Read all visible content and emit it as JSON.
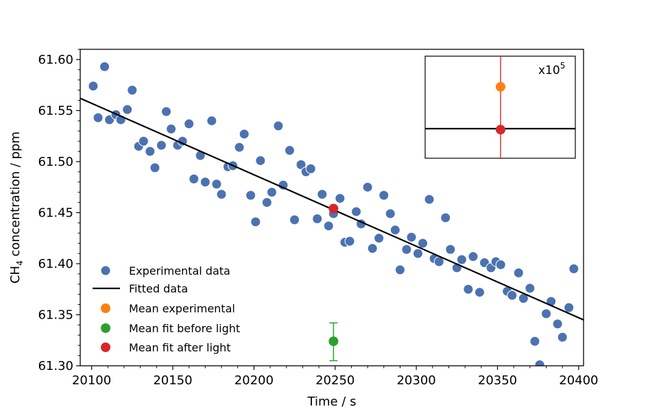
{
  "chart_data": {
    "type": "scatter",
    "title": "",
    "xlabel": "Time / s",
    "ylabel_parts": {
      "pre": "CH",
      "sub": "4",
      "post": " concentration / ppm"
    },
    "xlim": [
      20093,
      20403
    ],
    "ylim": [
      61.3,
      61.61
    ],
    "xticks": [
      20100,
      20150,
      20200,
      20250,
      20300,
      20350,
      20400
    ],
    "yticks": [
      61.3,
      61.35,
      61.4,
      61.45,
      61.5,
      61.55,
      61.6
    ],
    "xtick_labels": [
      "20100",
      "20150",
      "20200",
      "20250",
      "20300",
      "20350",
      "20400"
    ],
    "ytick_labels": [
      "61.30",
      "61.35",
      "61.40",
      "61.45",
      "61.50",
      "61.55",
      "61.60"
    ],
    "grid": false,
    "legend_position": "lower-left",
    "colors": {
      "experimental": "#4c72b0",
      "fit": "#000000",
      "mean_experimental": "#ff7f0e",
      "mean_fit_before": "#2ca02c",
      "mean_fit_after": "#d62728"
    },
    "legend": [
      {
        "label": "Experimental data",
        "kind": "marker",
        "color": "#4c72b0"
      },
      {
        "label": "Fitted data",
        "kind": "line",
        "color": "#000000"
      },
      {
        "label": "Mean experimental",
        "kind": "marker",
        "color": "#ff7f0e"
      },
      {
        "label": "Mean fit before light",
        "kind": "marker",
        "color": "#2ca02c"
      },
      {
        "label": "Mean fit after light",
        "kind": "marker",
        "color": "#d62728"
      }
    ],
    "experimental": {
      "x": [
        20101,
        20104,
        20108,
        20111,
        20115,
        20118,
        20122,
        20125,
        20129,
        20132,
        20136,
        20139,
        20143,
        20146,
        20149,
        20153,
        20156,
        20160,
        20163,
        20167,
        20170,
        20174,
        20177,
        20180,
        20184,
        20187,
        20191,
        20194,
        20198,
        20201,
        20204,
        20208,
        20211,
        20215,
        20218,
        20222,
        20225,
        20229,
        20232,
        20235,
        20239,
        20242,
        20246,
        20249,
        20253,
        20256,
        20259,
        20263,
        20266,
        20270,
        20273,
        20277,
        20280,
        20284,
        20287,
        20290,
        20294,
        20297,
        20301,
        20304,
        20308,
        20311,
        20314,
        20318,
        20321,
        20325,
        20328,
        20332,
        20335,
        20339,
        20342,
        20346,
        20349,
        20352,
        20356,
        20359,
        20363,
        20366,
        20370,
        20373,
        20376,
        20380,
        20383,
        20387,
        20390,
        20394,
        20397
      ],
      "y": [
        61.574,
        61.543,
        61.593,
        61.541,
        61.546,
        61.541,
        61.551,
        61.57,
        61.515,
        61.52,
        61.51,
        61.494,
        61.516,
        61.549,
        61.532,
        61.516,
        61.52,
        61.537,
        61.483,
        61.506,
        61.48,
        61.54,
        61.478,
        61.468,
        61.495,
        61.496,
        61.514,
        61.527,
        61.467,
        61.441,
        61.501,
        61.46,
        61.47,
        61.535,
        61.477,
        61.511,
        61.443,
        61.497,
        61.49,
        61.493,
        61.444,
        61.468,
        61.437,
        61.449,
        61.464,
        61.421,
        61.422,
        61.451,
        61.439,
        61.475,
        61.415,
        61.425,
        61.467,
        61.449,
        61.433,
        61.394,
        61.414,
        61.426,
        61.41,
        61.42,
        61.463,
        61.405,
        61.402,
        61.445,
        61.414,
        61.396,
        61.404,
        61.375,
        61.407,
        61.372,
        61.401,
        61.396,
        61.402,
        61.399,
        61.373,
        61.369,
        61.391,
        61.366,
        61.376,
        61.324,
        61.301,
        61.351,
        61.363,
        61.341,
        61.328,
        61.357,
        61.395
      ]
    },
    "fit": {
      "x": [
        20093,
        20403
      ],
      "y": [
        61.562,
        61.345
      ]
    },
    "mean_fit_after": {
      "x": 20249,
      "y": 61.454
    },
    "mean_fit_before": {
      "x": 20249,
      "y": 61.324,
      "err_low": 61.305,
      "err_high": 61.342
    },
    "inset": {
      "label_base": "x10",
      "label_exp": "5",
      "mean_experimental_rel": 0.3,
      "mean_fit_after_rel": 0.72,
      "fit_line_rel": 0.71
    }
  }
}
